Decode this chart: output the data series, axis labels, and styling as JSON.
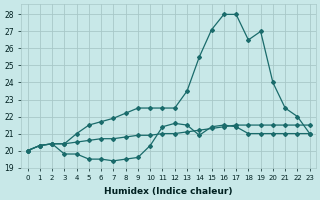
{
  "xlabel": "Humidex (Indice chaleur)",
  "bg_color": "#c8e8e8",
  "grid_color": "#a8c8c8",
  "line_color": "#1a6b6b",
  "xlim": [
    -0.5,
    23.5
  ],
  "ylim": [
    19,
    28.6
  ],
  "yticks": [
    19,
    20,
    21,
    22,
    23,
    24,
    25,
    26,
    27,
    28
  ],
  "xticks": [
    0,
    1,
    2,
    3,
    4,
    5,
    6,
    7,
    8,
    9,
    10,
    11,
    12,
    13,
    14,
    15,
    16,
    17,
    18,
    19,
    20,
    21,
    22,
    23
  ],
  "xtick_labels": [
    "0",
    "1",
    "2",
    "3",
    "4",
    "5",
    "6",
    "7",
    "8",
    "9",
    "10",
    "11",
    "12",
    "13",
    "14",
    "15",
    "16",
    "17",
    "18",
    "19",
    "20",
    "21",
    "22",
    "23"
  ],
  "line1_x": [
    0,
    1,
    2,
    3,
    4,
    5,
    6,
    7,
    8,
    9,
    10,
    11,
    12,
    13,
    14,
    15,
    16,
    17,
    18,
    19,
    20,
    21,
    22,
    23
  ],
  "line1_y": [
    20.0,
    20.3,
    20.4,
    20.4,
    20.5,
    20.6,
    20.7,
    20.7,
    20.8,
    20.9,
    20.9,
    21.0,
    21.0,
    21.1,
    21.2,
    21.3,
    21.4,
    21.5,
    21.5,
    21.5,
    21.5,
    21.5,
    21.5,
    21.5
  ],
  "line2_x": [
    0,
    1,
    2,
    3,
    4,
    5,
    6,
    7,
    8,
    9,
    10,
    11,
    12,
    13,
    14,
    15,
    16,
    17,
    18,
    19,
    20,
    21,
    22,
    23
  ],
  "line2_y": [
    20.0,
    20.3,
    20.4,
    19.8,
    19.8,
    19.5,
    19.5,
    19.4,
    19.5,
    19.6,
    20.3,
    21.4,
    21.6,
    21.5,
    20.9,
    21.4,
    21.5,
    21.4,
    21.0,
    21.0,
    21.0,
    21.0,
    21.0,
    21.0
  ],
  "line3_x": [
    0,
    1,
    2,
    3,
    4,
    5,
    6,
    7,
    8,
    9,
    10,
    11,
    12,
    13,
    14,
    15,
    16,
    17,
    18,
    19,
    20,
    21,
    22,
    23
  ],
  "line3_y": [
    20.0,
    20.3,
    20.4,
    20.4,
    21.0,
    21.5,
    21.7,
    21.9,
    22.2,
    22.5,
    22.5,
    22.5,
    22.5,
    23.5,
    25.5,
    27.1,
    28.0,
    28.0,
    26.5,
    27.0,
    24.0,
    22.5,
    22.0,
    21.0
  ]
}
